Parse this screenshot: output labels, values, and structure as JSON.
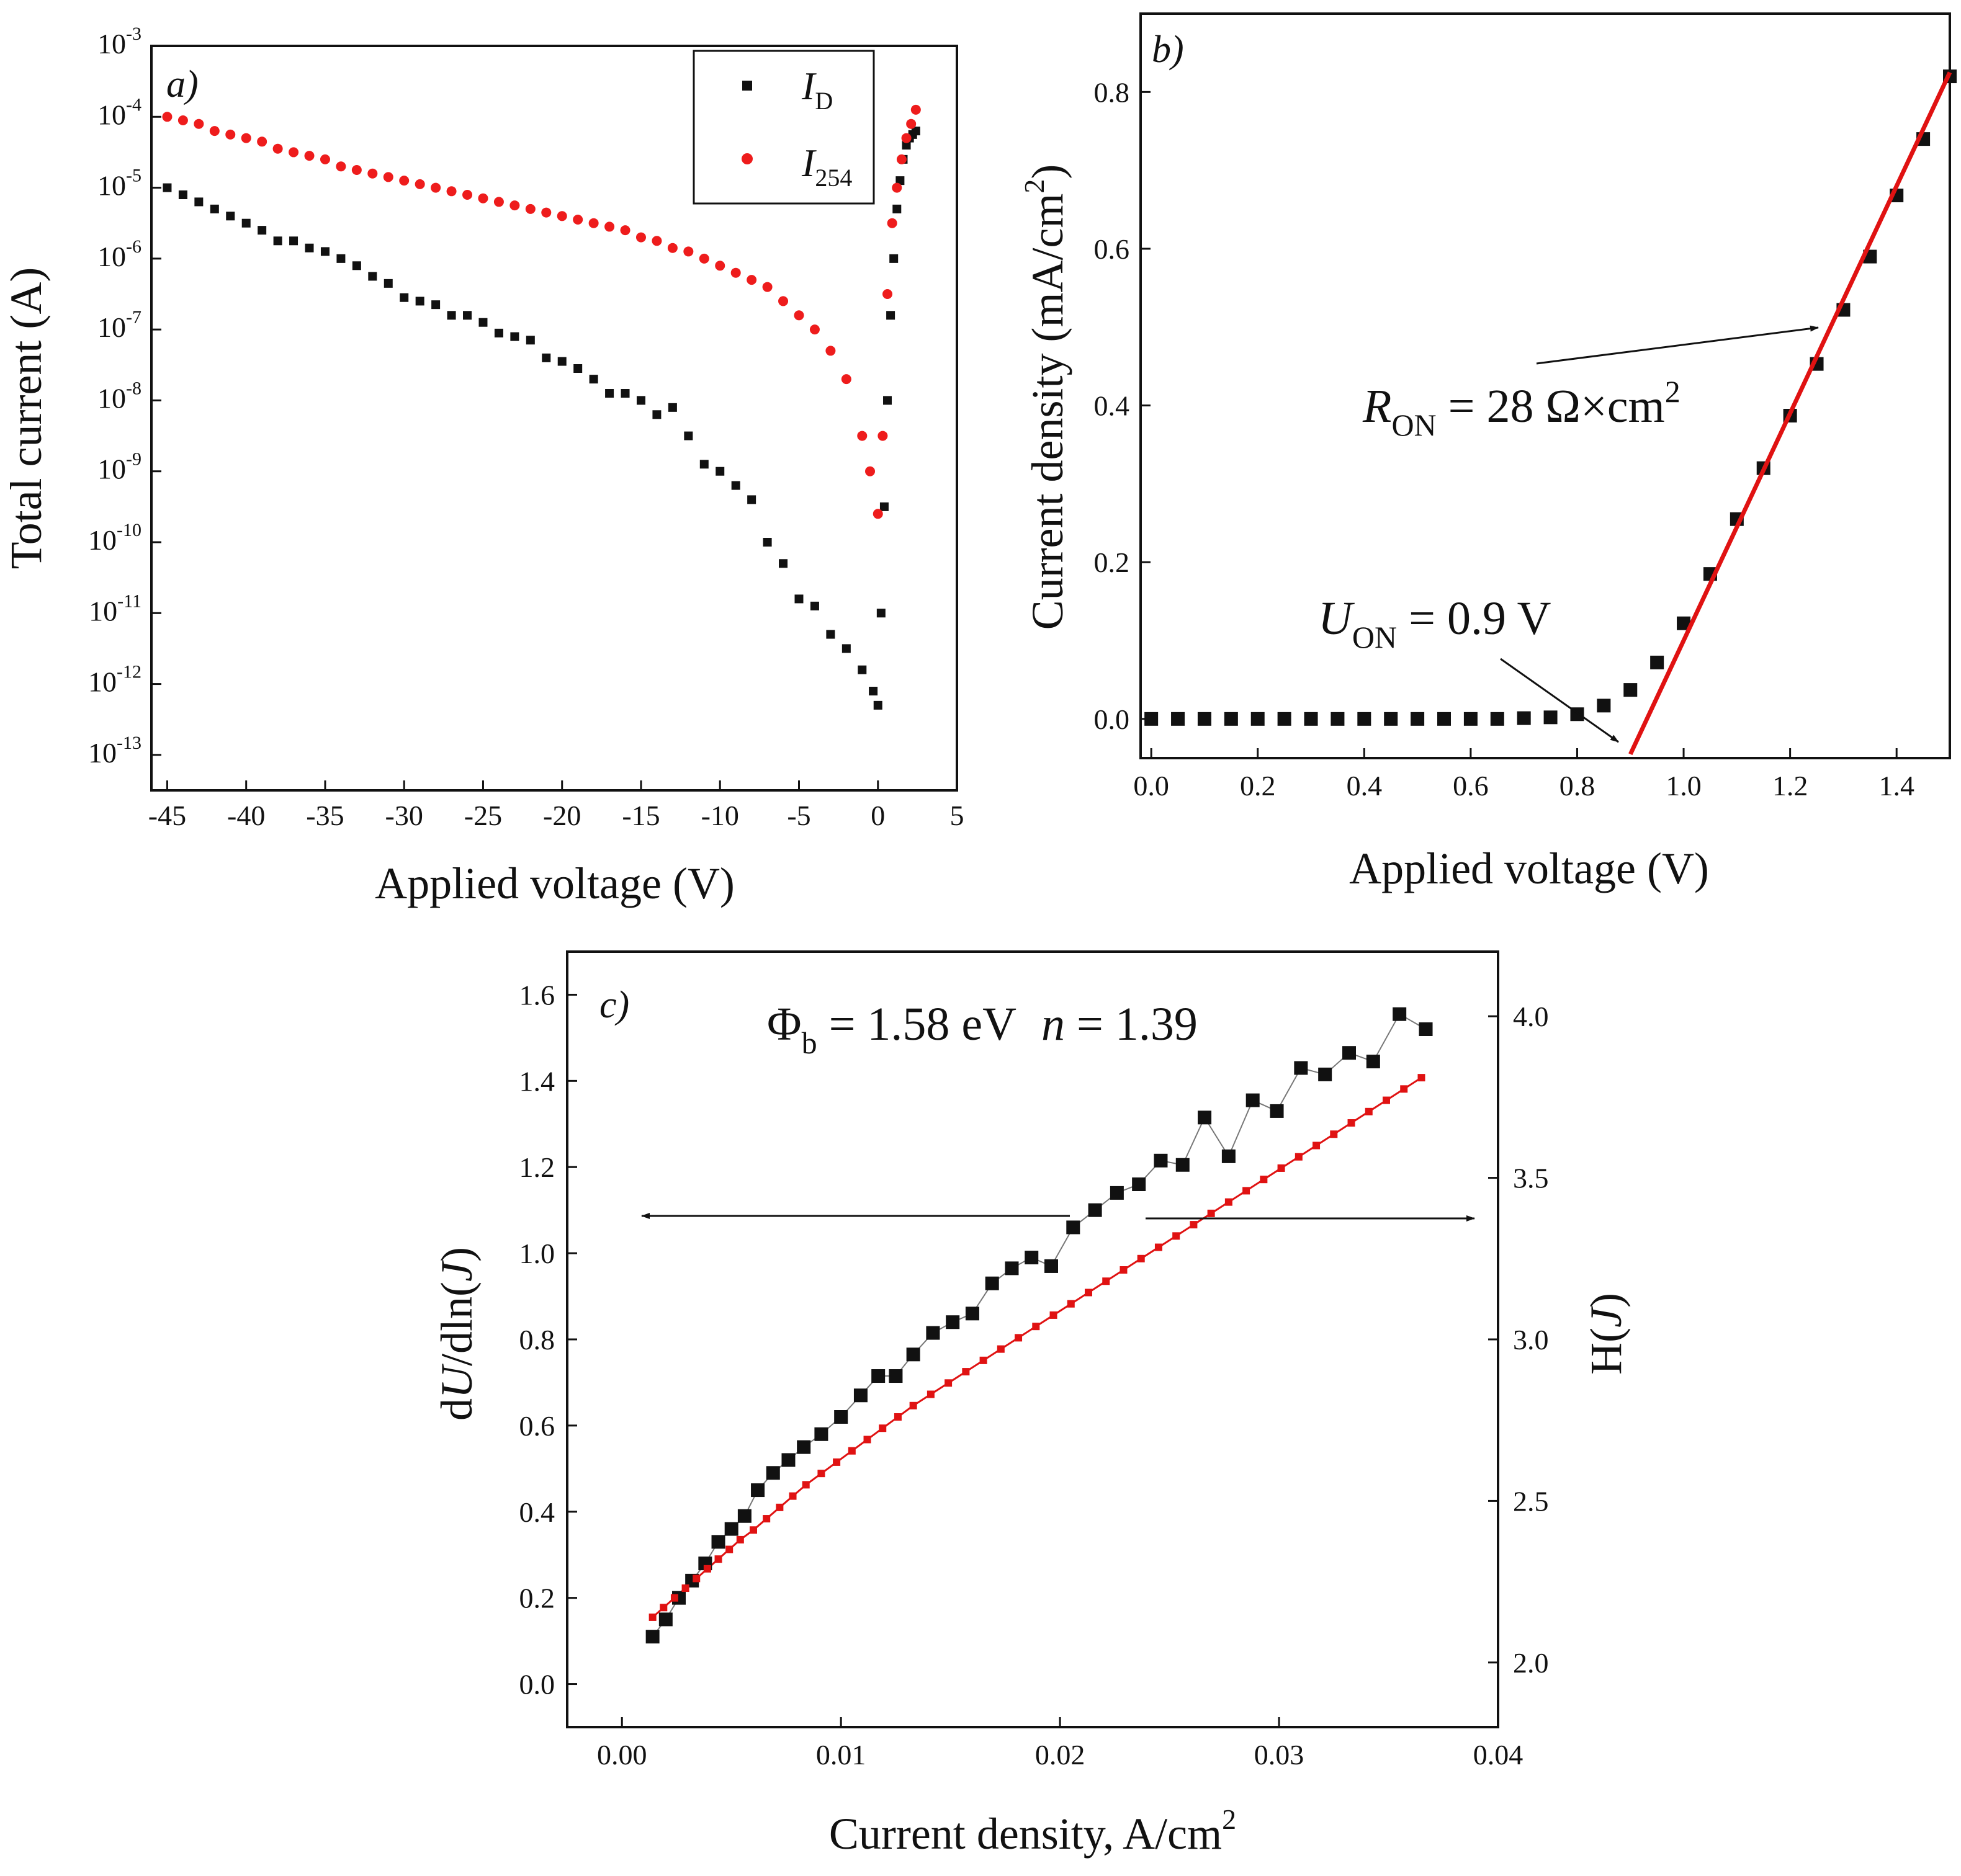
{
  "figure": {
    "panels": [
      {
        "id": "a",
        "label": "a)",
        "xlabel": "Applied voltage (V)",
        "ylabel": "Total current (A)",
        "legend": {
          "position": "top-right",
          "items": [
            {
              "name": "I",
              "sub": "D",
              "marker": "square",
              "color": "#111111"
            },
            {
              "name": "I",
              "sub": "254",
              "marker": "circle",
              "color": "#ee1c1c"
            }
          ]
        }
      },
      {
        "id": "b",
        "label": "b)",
        "xlabel": "Applied voltage (V)",
        "ylabel": "Current density (mA/cm",
        "ylabel_sup": "2",
        "ylabel_end": ")",
        "annotations": {
          "ron_name": "R",
          "ron_sub": "ON",
          "ron_value": " = 28 Ω×cm",
          "ron_sup": "2",
          "uon_name": "U",
          "uon_sub": "ON",
          "uon_value": " = 0.9 V"
        }
      },
      {
        "id": "c",
        "label": "c)",
        "xlabel": "Current density, A/cm",
        "xlabel_sup": "2",
        "ylabel_left": {
          "pre": "d",
          "var": "U",
          "mid": "/dln(",
          "var2": "J",
          "post": ")"
        },
        "ylabel_right": {
          "pre": "H(",
          "var": "J",
          "post": ")"
        },
        "annotation": {
          "phi": "Φ",
          "phi_sub": "b",
          "phi_value": " = 1.58 eV",
          "n_name": "n",
          "n_value": " = 1.39"
        }
      }
    ]
  },
  "chart_data": [
    {
      "type": "scatter",
      "panel": "a",
      "xscale": "linear",
      "yscale": "log",
      "xlim": [
        -46,
        5
      ],
      "ylim_exp": [
        -13.5,
        -3
      ],
      "xticks": [
        -45,
        -40,
        -35,
        -30,
        -25,
        -20,
        -15,
        -10,
        -5,
        0,
        5
      ],
      "xtick_labels": [
        "-45",
        "-40",
        "-35",
        "-30",
        "-25",
        "-20",
        "-15",
        "-10",
        "-5",
        "0",
        "5"
      ],
      "ytick_exps": [
        -13,
        -12,
        -11,
        -10,
        -9,
        -8,
        -7,
        -6,
        -5,
        -4,
        -3
      ],
      "ytick_labels": [
        "-13",
        "-12",
        "-11",
        "-10",
        "-9",
        "-8",
        "-7",
        "-6",
        "-5",
        "-4",
        "-3"
      ],
      "series": [
        {
          "name": "I_D",
          "marker": "square",
          "color": "#111111",
          "x": [
            -45,
            -44,
            -43,
            -42,
            -41,
            -40,
            -39,
            -38,
            -37,
            -36,
            -35,
            -34,
            -33,
            -32,
            -31,
            -30,
            -29,
            -28,
            -27,
            -26,
            -25,
            -24,
            -23,
            -22,
            -21,
            -20,
            -19,
            -18,
            -17,
            -16,
            -15,
            -14,
            -13,
            -12,
            -11,
            -10,
            -9,
            -8,
            -7,
            -6,
            -5,
            -4,
            -3,
            -2,
            -1,
            -0.3,
            0,
            0.2,
            0.4,
            0.6,
            0.8,
            1.0,
            1.2,
            1.4,
            1.6,
            1.8,
            2.0,
            2.2,
            2.4
          ],
          "log10_y": [
            -5.0,
            -5.1,
            -5.2,
            -5.3,
            -5.4,
            -5.5,
            -5.6,
            -5.75,
            -5.75,
            -5.85,
            -5.9,
            -6.0,
            -6.1,
            -6.25,
            -6.35,
            -6.55,
            -6.6,
            -6.65,
            -6.8,
            -6.8,
            -6.9,
            -7.05,
            -7.1,
            -7.15,
            -7.4,
            -7.45,
            -7.55,
            -7.7,
            -7.9,
            -7.9,
            -8.0,
            -8.2,
            -8.1,
            -8.5,
            -8.9,
            -9.0,
            -9.2,
            -9.4,
            -10.0,
            -10.3,
            -10.8,
            -10.9,
            -11.3,
            -11.5,
            -11.8,
            -12.1,
            -12.3,
            -11.0,
            -9.5,
            -8.0,
            -6.8,
            -6.0,
            -5.3,
            -4.9,
            -4.6,
            -4.4,
            -4.3,
            -4.25,
            -4.2
          ]
        },
        {
          "name": "I_254",
          "marker": "circle",
          "color": "#ee1c1c",
          "x": [
            -45,
            -44,
            -43,
            -42,
            -41,
            -40,
            -39,
            -38,
            -37,
            -36,
            -35,
            -34,
            -33,
            -32,
            -31,
            -30,
            -29,
            -28,
            -27,
            -26,
            -25,
            -24,
            -23,
            -22,
            -21,
            -20,
            -19,
            -18,
            -17,
            -16,
            -15,
            -14,
            -13,
            -12,
            -11,
            -10,
            -9,
            -8,
            -7,
            -6,
            -5,
            -4,
            -3,
            -2,
            -1,
            -0.5,
            0,
            0.3,
            0.6,
            0.9,
            1.2,
            1.5,
            1.8,
            2.1,
            2.4
          ],
          "log10_y": [
            -4.0,
            -4.05,
            -4.1,
            -4.2,
            -4.25,
            -4.3,
            -4.35,
            -4.45,
            -4.5,
            -4.55,
            -4.6,
            -4.7,
            -4.75,
            -4.8,
            -4.85,
            -4.9,
            -4.95,
            -5.0,
            -5.05,
            -5.1,
            -5.15,
            -5.2,
            -5.25,
            -5.3,
            -5.35,
            -5.4,
            -5.45,
            -5.5,
            -5.55,
            -5.6,
            -5.7,
            -5.75,
            -5.85,
            -5.9,
            -6.0,
            -6.1,
            -6.2,
            -6.3,
            -6.4,
            -6.6,
            -6.8,
            -7.0,
            -7.3,
            -7.7,
            -8.5,
            -9.0,
            -9.6,
            -8.5,
            -6.5,
            -5.5,
            -5.0,
            -4.6,
            -4.3,
            -4.1,
            -3.9
          ]
        }
      ]
    },
    {
      "type": "scatter",
      "panel": "b",
      "xlim": [
        -0.02,
        1.5
      ],
      "ylim": [
        -0.05,
        0.9
      ],
      "xticks": [
        0.0,
        0.2,
        0.4,
        0.6,
        0.8,
        1.0,
        1.2,
        1.4
      ],
      "xtick_labels": [
        "0.0",
        "0.2",
        "0.4",
        "0.6",
        "0.8",
        "1.0",
        "1.2",
        "1.4"
      ],
      "yticks": [
        0.0,
        0.2,
        0.4,
        0.6,
        0.8
      ],
      "ytick_labels": [
        "0.0",
        "0.2",
        "0.4",
        "0.6",
        "0.8"
      ],
      "series": [
        {
          "name": "data",
          "marker": "square",
          "color": "#111111",
          "x": [
            0.0,
            0.05,
            0.1,
            0.15,
            0.2,
            0.25,
            0.3,
            0.35,
            0.4,
            0.45,
            0.5,
            0.55,
            0.6,
            0.65,
            0.7,
            0.75,
            0.8,
            0.85,
            0.9,
            0.95,
            1.0,
            1.05,
            1.1,
            1.15,
            1.2,
            1.25,
            1.3,
            1.35,
            1.4,
            1.45,
            1.5
          ],
          "y": [
            0,
            0,
            0,
            0,
            0,
            0,
            0,
            0,
            0,
            0,
            0,
            0,
            0,
            0,
            0.001,
            0.002,
            0.006,
            0.017,
            0.037,
            0.072,
            0.122,
            0.185,
            0.255,
            0.32,
            0.387,
            0.453,
            0.522,
            0.59,
            0.668,
            0.74,
            0.82
          ]
        },
        {
          "name": "linear fit",
          "line": true,
          "color": "#e01212",
          "x": [
            0.9,
            1.5
          ],
          "y": [
            -0.045,
            0.825
          ]
        }
      ]
    },
    {
      "type": "scatter",
      "panel": "c",
      "xlim": [
        -0.0025,
        0.04
      ],
      "ylim_left": [
        -0.1,
        1.7
      ],
      "ylim_right": [
        1.8,
        4.2
      ],
      "xticks": [
        0.0,
        0.01,
        0.02,
        0.03,
        0.04
      ],
      "xtick_labels": [
        "0.00",
        "0.01",
        "0.02",
        "0.03",
        "0.04"
      ],
      "yticks_left": [
        0.0,
        0.2,
        0.4,
        0.6,
        0.8,
        1.0,
        1.2,
        1.4,
        1.6
      ],
      "ytick_labels_left": [
        "0.0",
        "0.2",
        "0.4",
        "0.6",
        "0.8",
        "1.0",
        "1.2",
        "1.4",
        "1.6"
      ],
      "yticks_right": [
        2.0,
        2.5,
        3.0,
        3.5,
        4.0
      ],
      "ytick_labels_right": [
        "2.0",
        "2.5",
        "3.0",
        "3.5",
        "4.0"
      ],
      "series": [
        {
          "name": "dU/dln(J)",
          "axis": "left",
          "marker": "square",
          "color": "#111111",
          "x": [
            0.0014,
            0.002,
            0.0026,
            0.0032,
            0.0038,
            0.0044,
            0.005,
            0.0056,
            0.0062,
            0.0069,
            0.0076,
            0.0083,
            0.0091,
            0.01,
            0.0109,
            0.0117,
            0.0125,
            0.0133,
            0.0142,
            0.0151,
            0.016,
            0.0169,
            0.0178,
            0.0187,
            0.0196,
            0.0206,
            0.0216,
            0.0226,
            0.0236,
            0.0246,
            0.0256,
            0.0266,
            0.0277,
            0.0288,
            0.0299,
            0.031,
            0.0321,
            0.0332,
            0.0343,
            0.0355,
            0.0367
          ],
          "y": [
            0.11,
            0.15,
            0.2,
            0.24,
            0.28,
            0.33,
            0.36,
            0.39,
            0.45,
            0.49,
            0.52,
            0.55,
            0.58,
            0.62,
            0.67,
            0.715,
            0.715,
            0.765,
            0.815,
            0.84,
            0.86,
            0.93,
            0.965,
            0.99,
            0.97,
            1.06,
            1.1,
            1.14,
            1.16,
            1.215,
            1.205,
            1.315,
            1.225,
            1.355,
            1.33,
            1.43,
            1.415,
            1.465,
            1.445,
            1.555,
            1.52
          ]
        },
        {
          "name": "H(J)",
          "axis": "right",
          "marker": "square",
          "color": "#e01212",
          "line": true,
          "x": [
            0.0014,
            0.0019,
            0.0024,
            0.0029,
            0.0034,
            0.0039,
            0.0044,
            0.0049,
            0.0054,
            0.006,
            0.0066,
            0.0072,
            0.0078,
            0.0084,
            0.0091,
            0.0098,
            0.0105,
            0.0112,
            0.0119,
            0.0126,
            0.0133,
            0.0141,
            0.0149,
            0.0157,
            0.0165,
            0.0173,
            0.0181,
            0.0189,
            0.0197,
            0.0205,
            0.0213,
            0.0221,
            0.0229,
            0.0237,
            0.0245,
            0.0253,
            0.0261,
            0.0269,
            0.0277,
            0.0285,
            0.0293,
            0.0301,
            0.0309,
            0.0317,
            0.0325,
            0.0333,
            0.0341,
            0.0349,
            0.0357,
            0.0365
          ],
          "y": [
            2.14,
            2.17,
            2.2,
            2.23,
            2.26,
            2.29,
            2.32,
            2.35,
            2.38,
            2.41,
            2.445,
            2.48,
            2.515,
            2.55,
            2.585,
            2.62,
            2.655,
            2.69,
            2.725,
            2.76,
            2.795,
            2.83,
            2.865,
            2.9,
            2.935,
            2.97,
            3.005,
            3.04,
            3.075,
            3.11,
            3.145,
            3.18,
            3.215,
            3.25,
            3.285,
            3.32,
            3.355,
            3.39,
            3.425,
            3.46,
            3.495,
            3.53,
            3.565,
            3.6,
            3.635,
            3.67,
            3.705,
            3.74,
            3.775,
            3.81
          ]
        }
      ]
    }
  ]
}
